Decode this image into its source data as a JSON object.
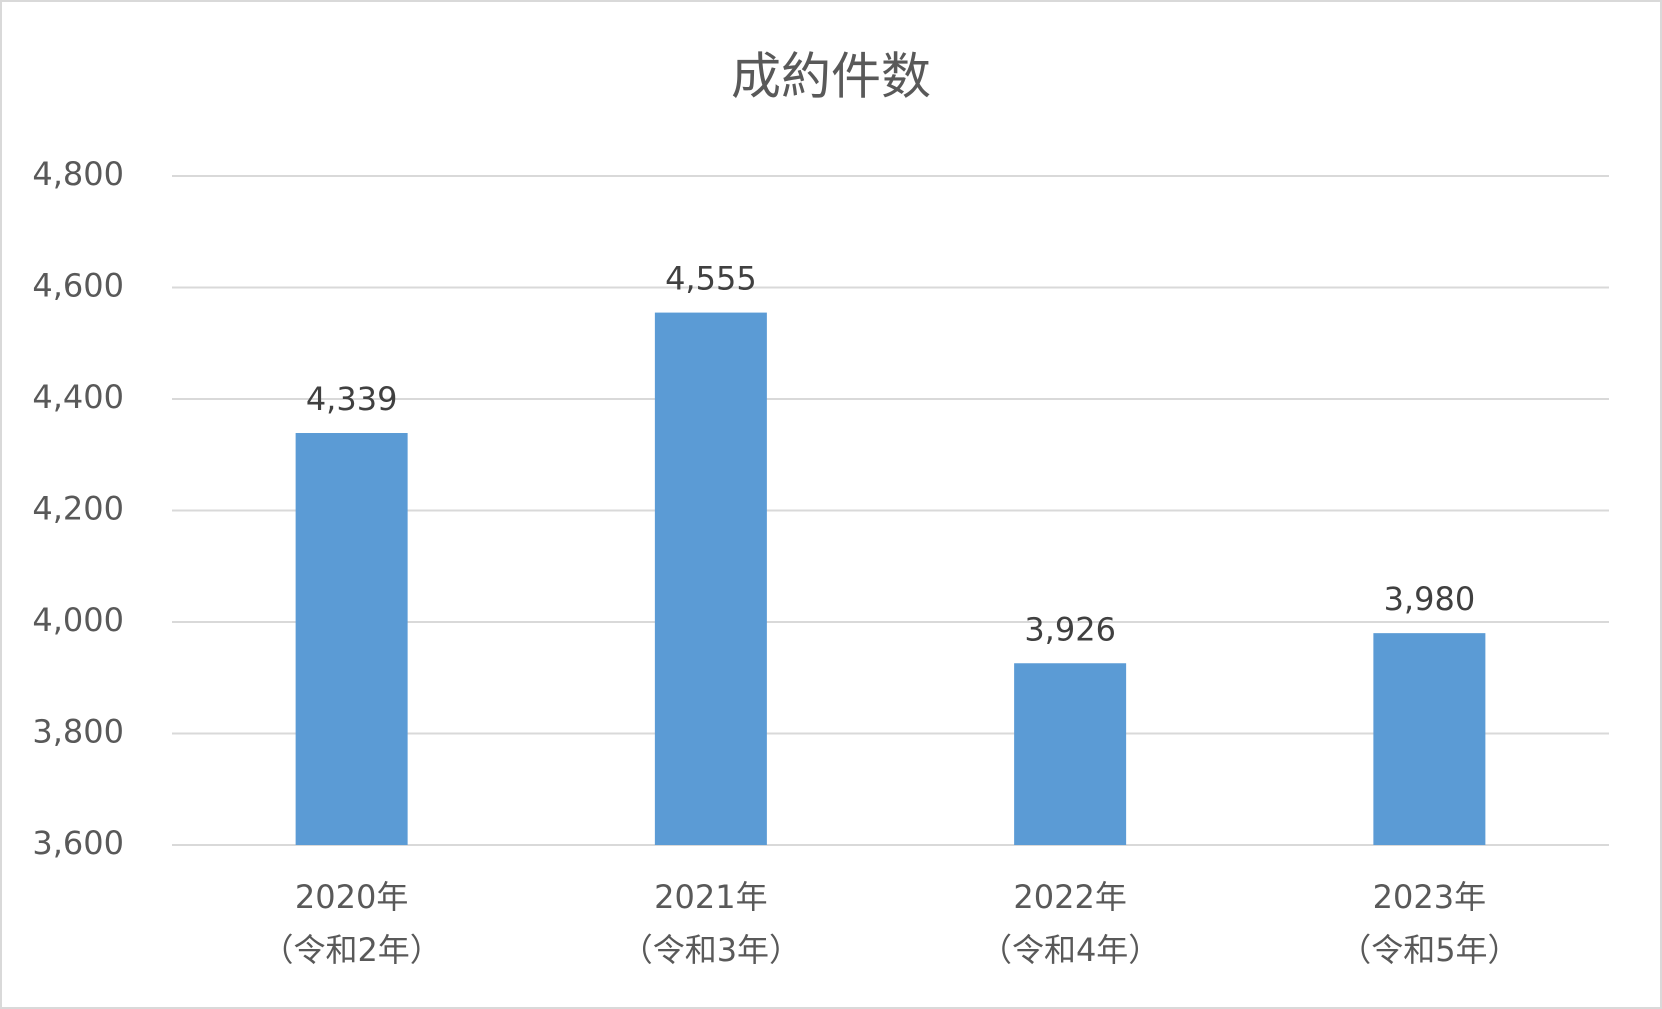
{
  "chart_data": {
    "type": "bar",
    "title": "成約件数",
    "categories": [
      "2020年\n（令和2年）",
      "2021年\n（令和3年）",
      "2022年\n（令和4年）",
      "2023年\n（令和5年）"
    ],
    "values": [
      4339,
      4555,
      3926,
      3980
    ],
    "value_labels": [
      "4,339",
      "4,555",
      "3,926",
      "3,980"
    ],
    "color": "#5b9bd5",
    "ylim": [
      3600,
      4800
    ],
    "yticks": [
      {
        "value": 3600,
        "label": "3,600"
      },
      {
        "value": 3800,
        "label": "3,800"
      },
      {
        "value": 4000,
        "label": "4,000"
      },
      {
        "value": 4200,
        "label": "4,200"
      },
      {
        "value": 4400,
        "label": "4,400"
      },
      {
        "value": 4600,
        "label": "4,600"
      },
      {
        "value": 4800,
        "label": "4,800"
      }
    ],
    "grid": true
  }
}
